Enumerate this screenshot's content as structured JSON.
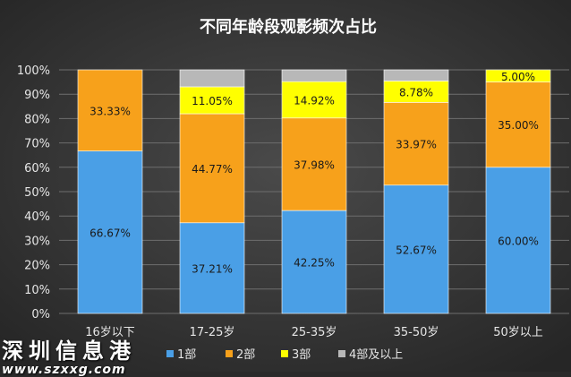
{
  "chart_data": {
    "type": "bar",
    "stacked": true,
    "title": "不同年龄段观影频次占比",
    "categories": [
      "16岁以下",
      "17-25岁",
      "25-35岁",
      "35-50岁",
      "50岁以上"
    ],
    "series": [
      {
        "name": "1部",
        "color": "#4a9fe6",
        "values": [
          66.67,
          37.21,
          42.25,
          52.67,
          60.0
        ],
        "labels": [
          "66.67%",
          "37.21%",
          "42.25%",
          "52.67%",
          "60.00%"
        ]
      },
      {
        "name": "2部",
        "color": "#f7a11b",
        "values": [
          33.33,
          44.77,
          37.98,
          33.97,
          35.0
        ],
        "labels": [
          "33.33%",
          "44.77%",
          "37.98%",
          "33.97%",
          "35.00%"
        ]
      },
      {
        "name": "3部",
        "color": "#ffff00",
        "values": [
          0,
          11.05,
          14.92,
          8.78,
          5.0
        ],
        "labels": [
          "",
          "11.05%",
          "14.92%",
          "8.78%",
          "5.00%"
        ]
      },
      {
        "name": "4部及以上",
        "color": "#b8b8b8",
        "values": [
          0,
          6.97,
          4.85,
          4.58,
          0
        ],
        "labels": [
          "",
          "",
          "",
          "",
          ""
        ]
      }
    ],
    "yticks": [
      "0%",
      "10%",
      "20%",
      "30%",
      "40%",
      "50%",
      "60%",
      "70%",
      "80%",
      "90%",
      "100%"
    ],
    "ylim": [
      0,
      100
    ],
    "grid": true,
    "legend": "bottom"
  },
  "watermark": {
    "text": "深圳信息港",
    "url": "www.szxxg.com"
  }
}
